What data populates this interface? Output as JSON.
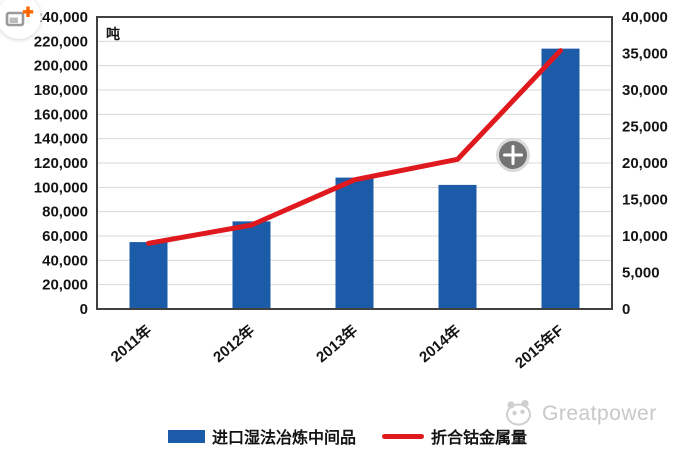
{
  "chart_data": {
    "type": "bar",
    "combo": "bar+line",
    "categories": [
      "2011年",
      "2012年",
      "2013年",
      "2014年",
      "2015年F"
    ],
    "series": [
      {
        "name": "进口湿法冶炼中间品",
        "type": "bar",
        "axis": "left",
        "color": "#1c5ba7",
        "values": [
          55000,
          72000,
          108000,
          102000,
          214000
        ]
      },
      {
        "name": "折合钴金属量",
        "type": "line",
        "axis": "right",
        "color": "#e0191e",
        "values": [
          9000,
          11500,
          17700,
          20500,
          35400
        ]
      }
    ],
    "left_axis": {
      "unit": "吨",
      "min": 0,
      "max": 240000,
      "step": 20000,
      "tick_labels": [
        "0",
        "20,000",
        "40,000",
        "60,000",
        "80,000",
        "100,000",
        "120,000",
        "140,000",
        "160,000",
        "180,000",
        "200,000",
        "220,000",
        "240,000"
      ]
    },
    "right_axis": {
      "min": 0,
      "max": 40000,
      "step": 5000,
      "tick_labels": [
        "0",
        "5,000",
        "10,000",
        "15,000",
        "20,000",
        "25,000",
        "30,000",
        "35,000",
        "40,000"
      ]
    },
    "grid": true,
    "legend_position": "bottom"
  },
  "style": {
    "grid_color": "#d9d9d9",
    "border_color": "#404040",
    "tick_color": "#141414",
    "watermark_color": "#c8c8c8"
  },
  "overlays": {
    "corner_badge_icon": "screenshot-crop-plus",
    "zoom_icon": "zoom-plus",
    "zoom_glyph": "+"
  },
  "watermark": {
    "brand": "Greatpower"
  }
}
